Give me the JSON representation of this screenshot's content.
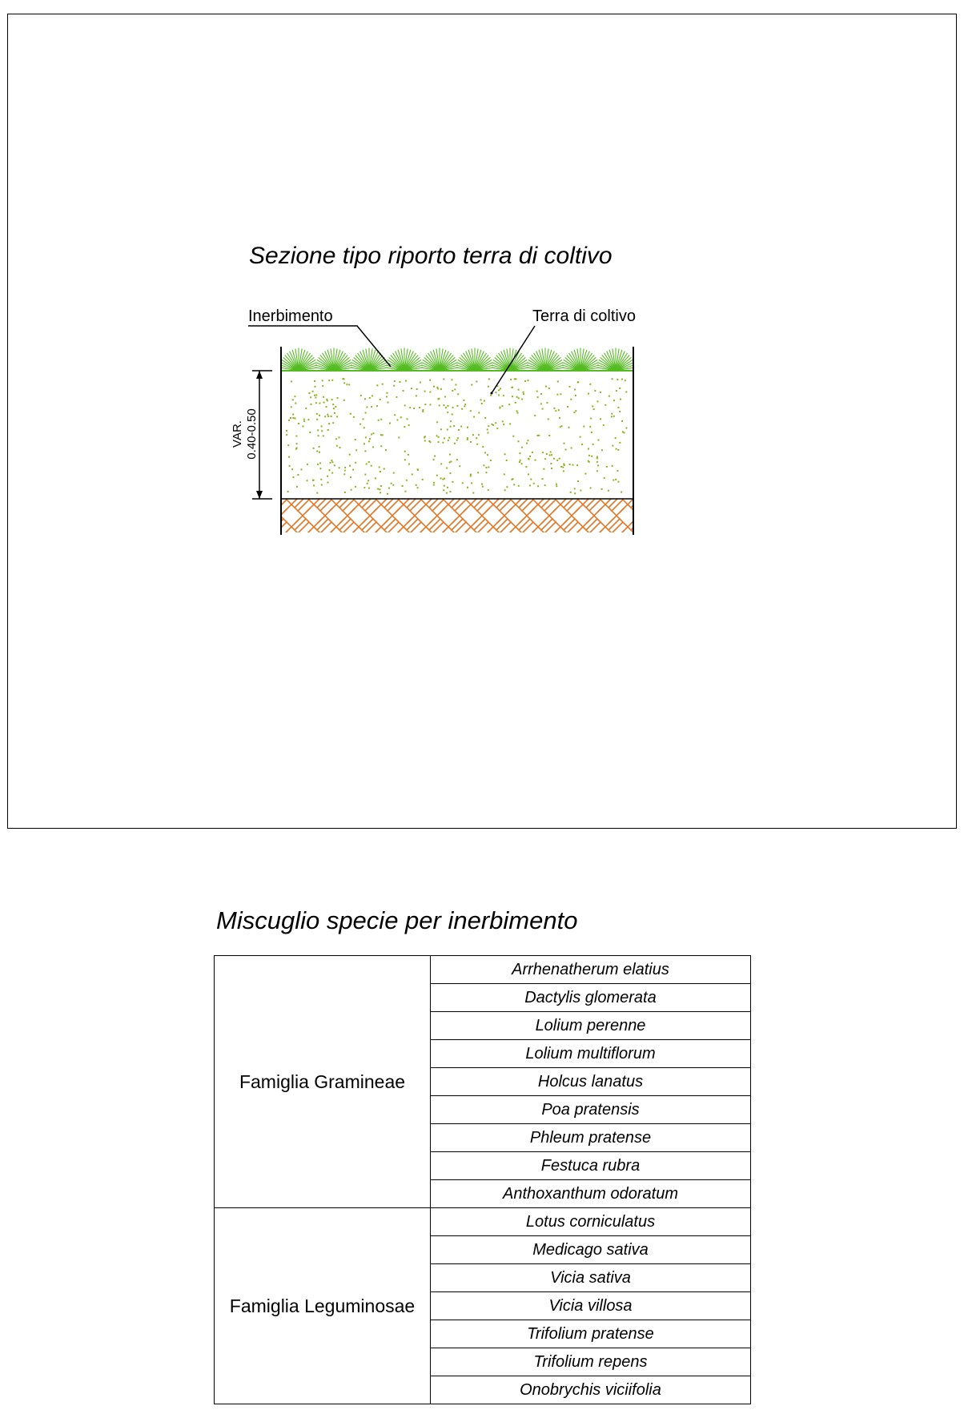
{
  "drawing": {
    "title": "Sezione tipo riporto terra di coltivo",
    "labels": {
      "inerbimento": "Inerbimento",
      "terra_di_coltivo": "Terra di coltivo",
      "dimension_line1": "VAR.",
      "dimension_line2": "0.40-0.50"
    },
    "colors": {
      "grass": "#55bb22",
      "topsoil_dots": "#8ab41c",
      "substrate_hatch": "#e07a2a",
      "lines": "#000000"
    },
    "icons": [
      "grass-tuft-icon",
      "soil-dots-pattern",
      "substrate-hatch-pattern"
    ]
  },
  "mix": {
    "title": "Miscuglio specie per inerbimento",
    "families": [
      {
        "name": "Famiglia Gramineae",
        "species": [
          "Arrhenatherum elatius",
          "Dactylis glomerata",
          "Lolium perenne",
          "Lolium multiflorum",
          "Holcus lanatus",
          "Poa pratensis",
          "Phleum pratense",
          "Festuca rubra",
          "Anthoxanthum odoratum"
        ]
      },
      {
        "name": "Famiglia Leguminosae",
        "species": [
          "Lotus corniculatus",
          "Medicago sativa",
          "Vicia sativa",
          "Vicia villosa",
          "Trifolium pratense",
          "Trifolium repens",
          "Onobrychis viciifolia"
        ]
      }
    ]
  }
}
